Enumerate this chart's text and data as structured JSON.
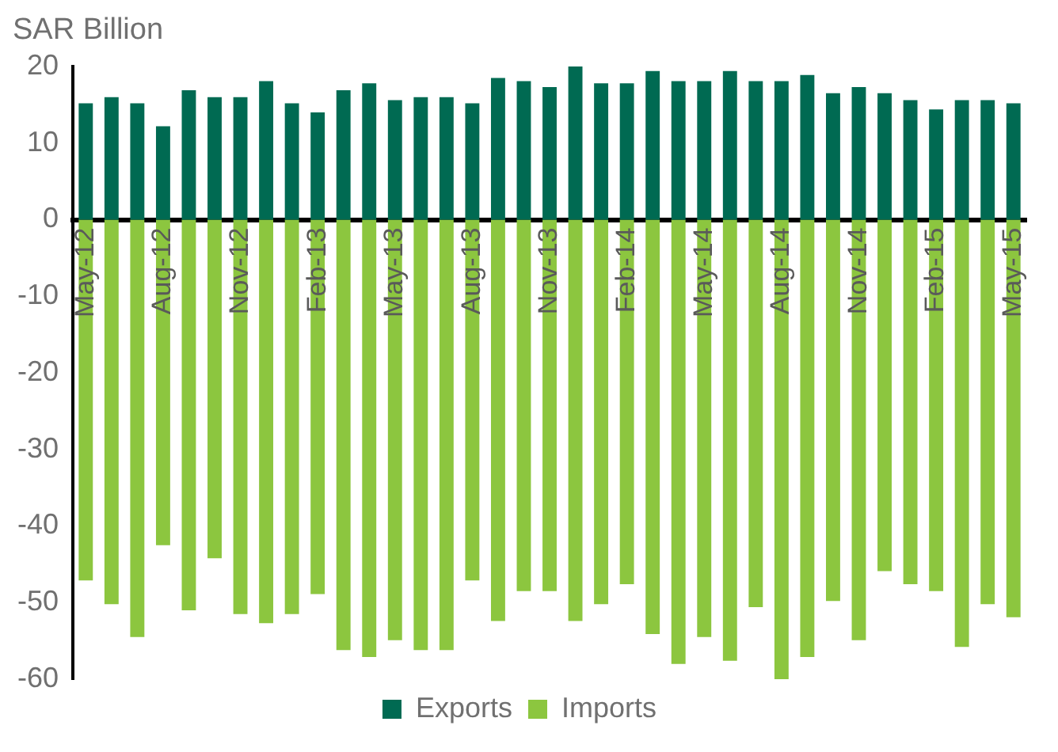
{
  "chart_data": {
    "type": "bar",
    "ylabel": "SAR Billion",
    "categories": [
      "May-12",
      null,
      null,
      "Aug-12",
      null,
      null,
      "Nov-12",
      null,
      null,
      "Feb-13",
      null,
      null,
      "May-13",
      null,
      null,
      "Aug-13",
      null,
      null,
      "Nov-13",
      null,
      null,
      "Feb-14",
      null,
      null,
      "May-14",
      null,
      null,
      "Aug-14",
      null,
      null,
      "Nov-14",
      null,
      null,
      "Feb-15",
      null,
      null,
      "May-15"
    ],
    "series": [
      {
        "name": "Exports",
        "color": "#006a52",
        "values": [
          15.2,
          16,
          15.2,
          12.2,
          16.9,
          16,
          16,
          18.1,
          15.2,
          14,
          16.9,
          17.8,
          15.6,
          16,
          16,
          15.2,
          18.5,
          18.1,
          17.3,
          20,
          17.8,
          17.8,
          19.4,
          18.1,
          18.1,
          19.4,
          18.1,
          18.1,
          18.9,
          16.5,
          17.3,
          16.5,
          15.6,
          14.4,
          15.6,
          15.6,
          15.2
        ]
      },
      {
        "name": "Imports",
        "color": "#8cc63f",
        "values": [
          -47.1,
          -50.2,
          -54.5,
          -42.5,
          -51,
          -44.2,
          -51.5,
          -52.7,
          -51.5,
          -48.9,
          -56.2,
          -57.1,
          -54.9,
          -56.2,
          -56.2,
          -47.1,
          -52.4,
          -48.5,
          -48.5,
          -52.4,
          -50.2,
          -47.6,
          -54.1,
          -58,
          -54.5,
          -57.6,
          -50.6,
          -60,
          -57.1,
          -49.8,
          -54.9,
          -45.9,
          -47.6,
          -48.5,
          -55.8,
          -50.2,
          -51.9
        ]
      }
    ],
    "stacked": true,
    "ylim": [
      -60,
      20
    ],
    "yticks": [
      20,
      10,
      0,
      -10,
      -20,
      -30,
      -40,
      -50,
      -60
    ],
    "grid": false,
    "legend": "bottom"
  }
}
